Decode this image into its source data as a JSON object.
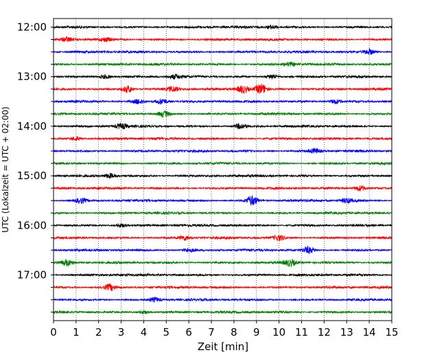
{
  "chart_data": {
    "type": "line",
    "chart_kind": "helicorder-seismogram",
    "xlabel": "Zeit  [min]",
    "ylabel": "UTC (Lokalzeit = UTC + 02:00)",
    "xlim": [
      0,
      15
    ],
    "x_ticks": [
      0,
      1,
      2,
      3,
      4,
      5,
      6,
      7,
      8,
      9,
      10,
      11,
      12,
      13,
      14,
      15
    ],
    "x_tick_labels": [
      "0",
      "1",
      "2",
      "3",
      "4",
      "5",
      "6",
      "7",
      "8",
      "9",
      "10",
      "11",
      "12",
      "13",
      "14",
      "15"
    ],
    "vertical_grid": "dotted",
    "y_tick_labels": [
      "12:00",
      "13:00",
      "14:00",
      "15:00",
      "16:00",
      "17:00"
    ],
    "trace_start_times": [
      "12:00",
      "12:15",
      "12:30",
      "12:45",
      "13:00",
      "13:15",
      "13:30",
      "13:45",
      "14:00",
      "14:15",
      "14:30",
      "14:45",
      "15:00",
      "15:15",
      "15:30",
      "15:45",
      "16:00",
      "16:15",
      "16:30",
      "16:45",
      "17:00",
      "17:15",
      "17:30",
      "17:45"
    ],
    "trace_colors": [
      "#000000",
      "#ff0000",
      "#0000ff",
      "#008000"
    ],
    "trace_minutes_per_line": 15,
    "events": [
      {
        "trace": 0,
        "minute": 9.7,
        "amp": 1.1
      },
      {
        "trace": 1,
        "minute": 0.6,
        "amp": 1.3
      },
      {
        "trace": 1,
        "minute": 2.3,
        "amp": 1.0
      },
      {
        "trace": 2,
        "minute": 14.0,
        "amp": 1.8
      },
      {
        "trace": 3,
        "minute": 10.5,
        "amp": 1.2
      },
      {
        "trace": 4,
        "minute": 2.3,
        "amp": 1.2
      },
      {
        "trace": 4,
        "minute": 5.4,
        "amp": 1.3
      },
      {
        "trace": 4,
        "minute": 9.7,
        "amp": 1.5
      },
      {
        "trace": 5,
        "minute": 3.3,
        "amp": 2.2
      },
      {
        "trace": 5,
        "minute": 5.3,
        "amp": 1.5
      },
      {
        "trace": 5,
        "minute": 8.4,
        "amp": 2.5
      },
      {
        "trace": 5,
        "minute": 9.2,
        "amp": 3.2
      },
      {
        "trace": 6,
        "minute": 4.8,
        "amp": 2.0
      },
      {
        "trace": 6,
        "minute": 3.8,
        "amp": 1.5
      },
      {
        "trace": 6,
        "minute": 12.5,
        "amp": 1.5
      },
      {
        "trace": 7,
        "minute": 4.9,
        "amp": 1.8
      },
      {
        "trace": 8,
        "minute": 3.0,
        "amp": 1.6
      },
      {
        "trace": 8,
        "minute": 8.3,
        "amp": 1.6
      },
      {
        "trace": 9,
        "minute": 1.0,
        "amp": 1.2
      },
      {
        "trace": 10,
        "minute": 11.6,
        "amp": 1.5
      },
      {
        "trace": 12,
        "minute": 2.5,
        "amp": 1.5
      },
      {
        "trace": 13,
        "minute": 13.6,
        "amp": 1.8
      },
      {
        "trace": 14,
        "minute": 1.2,
        "amp": 1.6
      },
      {
        "trace": 14,
        "minute": 8.8,
        "amp": 3.0
      },
      {
        "trace": 14,
        "minute": 13.0,
        "amp": 1.4
      },
      {
        "trace": 16,
        "minute": 3.0,
        "amp": 1.2
      },
      {
        "trace": 17,
        "minute": 5.8,
        "amp": 1.4
      },
      {
        "trace": 17,
        "minute": 10.0,
        "amp": 1.6
      },
      {
        "trace": 18,
        "minute": 11.3,
        "amp": 2.0
      },
      {
        "trace": 18,
        "minute": 6.0,
        "amp": 1.2
      },
      {
        "trace": 19,
        "minute": 0.6,
        "amp": 1.9
      },
      {
        "trace": 19,
        "minute": 10.5,
        "amp": 2.0
      },
      {
        "trace": 21,
        "minute": 2.5,
        "amp": 2.0
      },
      {
        "trace": 22,
        "minute": 4.5,
        "amp": 1.2
      },
      {
        "trace": 23,
        "minute": 4.0,
        "amp": 1.1
      }
    ]
  }
}
